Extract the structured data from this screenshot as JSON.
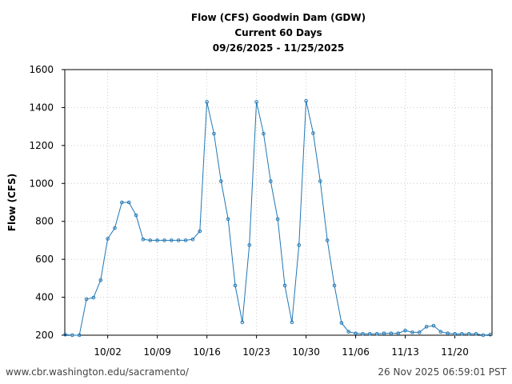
{
  "header": {
    "line1": "Flow (CFS) Goodwin Dam (GDW)",
    "line2": "Current 60 Days",
    "line3": "09/26/2025 - 11/25/2025"
  },
  "footer": {
    "url": "www.cbr.washington.edu/sacramento/",
    "timestamp": "26 Nov 2025 06:59:01 PST"
  },
  "colors": {
    "series": "#1f77b4",
    "grid": "#cccccc"
  },
  "chart_data": {
    "type": "line",
    "title": "Flow (CFS) Goodwin Dam (GDW) — Current 60 Days — 09/26/2025 - 11/25/2025",
    "xlabel": "",
    "ylabel": "Flow (CFS)",
    "ylim": [
      200,
      1600
    ],
    "yticks": [
      200,
      400,
      600,
      800,
      1000,
      1200,
      1400,
      1600
    ],
    "xticks": [
      "10/02",
      "10/09",
      "10/16",
      "10/23",
      "10/30",
      "11/06",
      "11/13",
      "11/20"
    ],
    "xtick_day_index": [
      6,
      13,
      20,
      27,
      34,
      41,
      48,
      55
    ],
    "grid": true,
    "legend": "none",
    "x": [
      "09/26",
      "09/27",
      "09/28",
      "09/29",
      "09/30",
      "10/01",
      "10/02",
      "10/03",
      "10/04",
      "10/05",
      "10/06",
      "10/07",
      "10/08",
      "10/09",
      "10/10",
      "10/11",
      "10/12",
      "10/13",
      "10/14",
      "10/15",
      "10/16",
      "10/17",
      "10/18",
      "10/19",
      "10/20",
      "10/21",
      "10/22",
      "10/23",
      "10/24",
      "10/25",
      "10/26",
      "10/27",
      "10/28",
      "10/29",
      "10/30",
      "10/31",
      "11/01",
      "11/02",
      "11/03",
      "11/04",
      "11/05",
      "11/06",
      "11/07",
      "11/08",
      "11/09",
      "11/10",
      "11/11",
      "11/12",
      "11/13",
      "11/14",
      "11/15",
      "11/16",
      "11/17",
      "11/18",
      "11/19",
      "11/20",
      "11/21",
      "11/22",
      "11/23",
      "11/24",
      "11/25"
    ],
    "series": [
      {
        "name": "Flow (CFS)",
        "values": [
          203,
          200,
          200,
          390,
          398,
          490,
          708,
          765,
          900,
          900,
          832,
          705,
          700,
          700,
          700,
          700,
          700,
          700,
          705,
          748,
          1430,
          1262,
          1012,
          812,
          462,
          268,
          675,
          1430,
          1262,
          1012,
          812,
          462,
          268,
          675,
          1435,
          1265,
          1012,
          700,
          462,
          265,
          218,
          210,
          207,
          207,
          207,
          210,
          210,
          210,
          225,
          215,
          215,
          245,
          250,
          218,
          210,
          207,
          207,
          207,
          207,
          200,
          203
        ]
      }
    ]
  }
}
